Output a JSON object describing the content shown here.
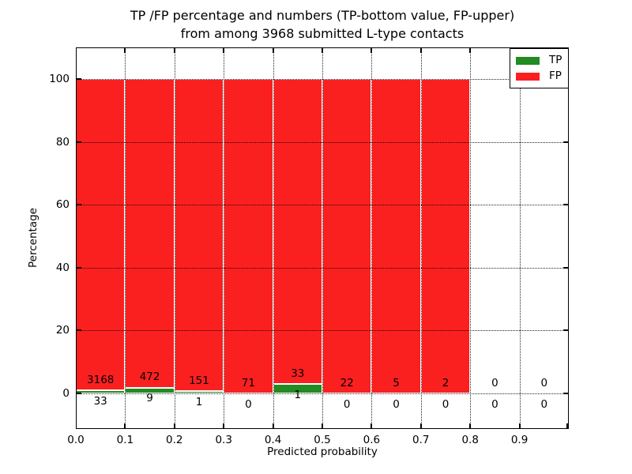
{
  "figure": {
    "title_line1": "TP /FP percentage and numbers (TP-bottom value, FP-upper)",
    "title_line2": "from among 3968 submitted L-type contacts"
  },
  "chart_data": {
    "type": "bar",
    "stacked": true,
    "title": "TP /FP percentage and numbers (TP-bottom value, FP-upper)\nfrom among 3968 submitted L-type contacts",
    "xlabel": "Predicted probability",
    "ylabel": "Percentage",
    "total_contacts": 3968,
    "bin_starts": [
      0.0,
      0.1,
      0.2,
      0.3,
      0.4,
      0.5,
      0.6,
      0.7,
      0.8,
      0.9
    ],
    "bin_width": 0.1,
    "series": [
      {
        "name": "TP",
        "color": "#228B22",
        "counts": [
          33,
          9,
          1,
          0,
          1,
          0,
          0,
          0,
          0,
          0
        ]
      },
      {
        "name": "FP",
        "color": "#fb2020",
        "counts": [
          3168,
          472,
          151,
          71,
          33,
          22,
          5,
          2,
          0,
          0
        ]
      }
    ],
    "derived_tp_percent": [
      1.03,
      1.87,
      0.66,
      0.0,
      2.94,
      0.0,
      0.0,
      0.0,
      null,
      null
    ],
    "derived_fp_percent": [
      98.97,
      98.13,
      99.34,
      100.0,
      97.06,
      100.0,
      100.0,
      100.0,
      null,
      null
    ],
    "xticks": [
      "0.0",
      "0.1",
      "0.2",
      "0.3",
      "0.4",
      "0.5",
      "0.6",
      "0.7",
      "0.8",
      "0.9"
    ],
    "yticks": [
      "0",
      "20",
      "40",
      "60",
      "80",
      "100"
    ],
    "ytick_values": [
      0,
      20,
      40,
      60,
      80,
      100
    ],
    "xlim": [
      0.0,
      1.0
    ],
    "ylim": [
      -11.3,
      110.6
    ],
    "grid": true,
    "legend": {
      "position": "upper right",
      "entries": [
        {
          "label": "TP",
          "color": "#228B22"
        },
        {
          "label": "FP",
          "color": "#fb2020"
        }
      ]
    }
  }
}
